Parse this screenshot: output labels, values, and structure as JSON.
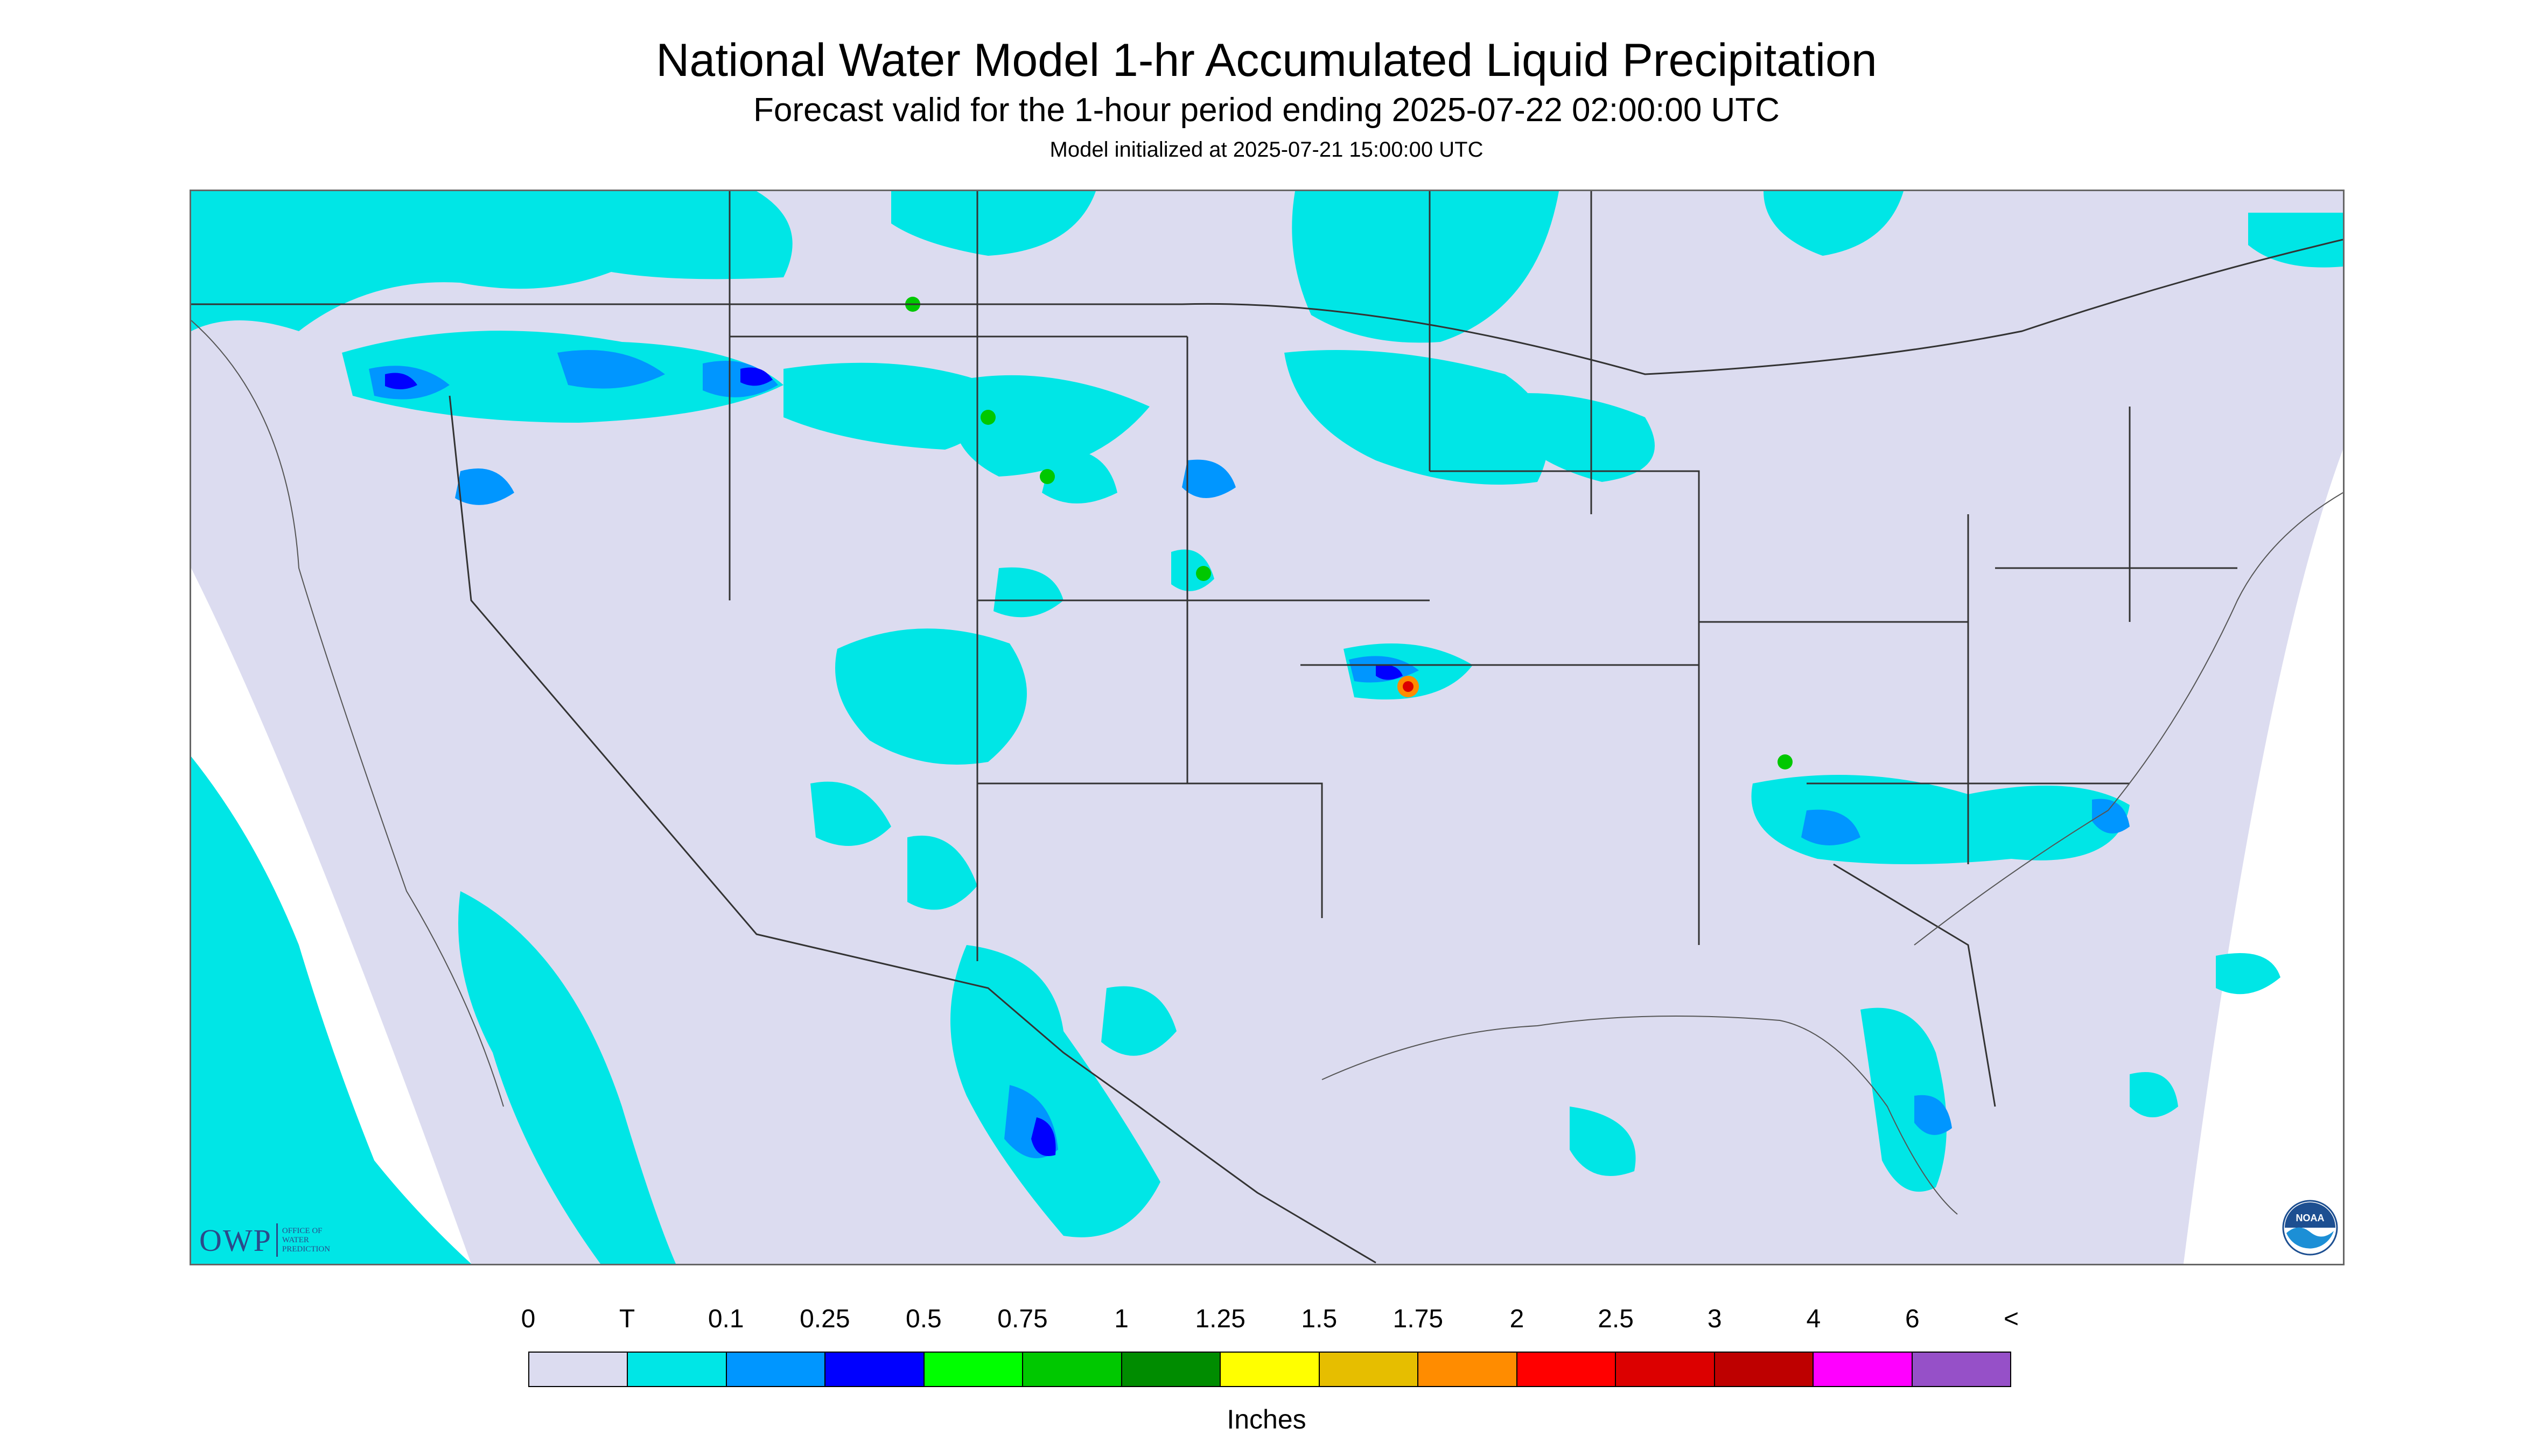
{
  "header": {
    "title": "National Water Model 1-hr Accumulated Liquid Precipitation",
    "subtitle": "Forecast valid for the 1-hour period ending 2025-07-22 02:00:00 UTC",
    "init": "Model initialized at 2025-07-21 15:00:00 UTC"
  },
  "logos": {
    "owp_text": "OWP",
    "owp_sub": [
      "OFFICE OF",
      "WATER",
      "PREDICTION"
    ],
    "noaa_text": "NOAA"
  },
  "legend": {
    "labels": [
      "0",
      "T",
      "0.1",
      "0.25",
      "0.5",
      "0.75",
      "1",
      "1.25",
      "1.5",
      "1.75",
      "2",
      "2.5",
      "3",
      "4",
      "6",
      "<"
    ],
    "colors": [
      "#dcdcf0",
      "#00e6e6",
      "#0096ff",
      "#0000ff",
      "#00ff00",
      "#00c800",
      "#008c00",
      "#ffff00",
      "#e6be00",
      "#ff8c00",
      "#ff0000",
      "#dc0000",
      "#be0000",
      "#ff00ff",
      "#9650c8"
    ],
    "unit": "Inches"
  },
  "map": {
    "domain_fill": "#dcdcf0",
    "outside_fill": "#ffffff",
    "border_color": "#333333"
  }
}
